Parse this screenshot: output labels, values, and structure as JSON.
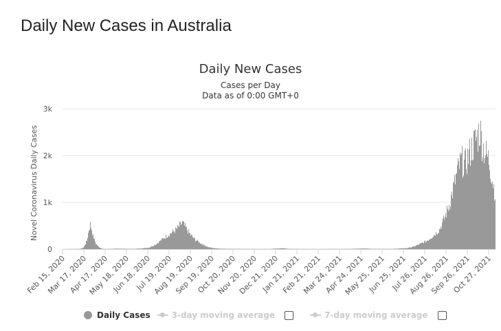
{
  "page": {
    "title": "Daily New Cases in Australia"
  },
  "legend": {
    "daily": "Daily Cases",
    "ma3": "3-day moving average",
    "ma7": "7-day moving average"
  },
  "colors": {
    "bars": "#999999",
    "grid": "#e6e6e6",
    "inactive": "#cccccc"
  },
  "chart_data": {
    "type": "bar",
    "title": "Daily New Cases",
    "subtitle": "Cases per Day",
    "subtitle2": "Data as of 0:00 GMT+0",
    "ylabel": "Novel Coronavirus Daily Cases",
    "xlabel": "",
    "ylim": [
      0,
      3000
    ],
    "yticks": [
      0,
      1000,
      2000,
      3000
    ],
    "ytick_labels": [
      "0",
      "1k",
      "2k",
      "3k"
    ],
    "x_start": "2020-02-15",
    "x_tick_labels": [
      "Feb 15, 2020",
      "Mar 17, 2020",
      "Apr 17, 2020",
      "May 18, 2020",
      "Jun 18, 2020",
      "Jul 19, 2020",
      "Aug 19, 2020",
      "Sep 19, 2020",
      "Oct 20, 2020",
      "Nov 20, 2020",
      "Dec 21, 2020",
      "Jan 21, 2021",
      "Feb 21, 2021",
      "Mar 24, 2021",
      "Apr 24, 2021",
      "May 25, 2021",
      "Jun 25, 2021",
      "Jul 26, 2021",
      "Aug 26, 2021",
      "Sep 26, 2021",
      "Oct 27, 2021"
    ],
    "x_tick_days": [
      0,
      31,
      62,
      93,
      124,
      155,
      186,
      217,
      248,
      279,
      310,
      341,
      372,
      403,
      434,
      465,
      496,
      527,
      558,
      589,
      620
    ],
    "day_count": 630,
    "series": [
      {
        "name": "Daily Cases",
        "anchors_day_value": [
          [
            0,
            0
          ],
          [
            25,
            5
          ],
          [
            30,
            30
          ],
          [
            35,
            180
          ],
          [
            38,
            420
          ],
          [
            40,
            530
          ],
          [
            42,
            420
          ],
          [
            44,
            280
          ],
          [
            48,
            120
          ],
          [
            52,
            50
          ],
          [
            56,
            15
          ],
          [
            60,
            3
          ],
          [
            70,
            5
          ],
          [
            80,
            10
          ],
          [
            90,
            8
          ],
          [
            100,
            5
          ],
          [
            110,
            10
          ],
          [
            125,
            30
          ],
          [
            135,
            100
          ],
          [
            142,
            180
          ],
          [
            150,
            270
          ],
          [
            158,
            350
          ],
          [
            165,
            420
          ],
          [
            170,
            500
          ],
          [
            174,
            560
          ],
          [
            180,
            430
          ],
          [
            186,
            300
          ],
          [
            192,
            210
          ],
          [
            198,
            150
          ],
          [
            205,
            90
          ],
          [
            212,
            40
          ],
          [
            220,
            20
          ],
          [
            230,
            10
          ],
          [
            250,
            5
          ],
          [
            300,
            3
          ],
          [
            320,
            20
          ],
          [
            330,
            5
          ],
          [
            360,
            2
          ],
          [
            420,
            5
          ],
          [
            440,
            15
          ],
          [
            450,
            5
          ],
          [
            480,
            5
          ],
          [
            500,
            20
          ],
          [
            510,
            50
          ],
          [
            520,
            110
          ],
          [
            530,
            180
          ],
          [
            540,
            300
          ],
          [
            548,
            420
          ],
          [
            555,
            650
          ],
          [
            560,
            850
          ],
          [
            565,
            1100
          ],
          [
            570,
            1400
          ],
          [
            575,
            1700
          ],
          [
            580,
            1900
          ],
          [
            585,
            1800
          ],
          [
            592,
            2050
          ],
          [
            598,
            2250
          ],
          [
            603,
            2400
          ],
          [
            607,
            2550
          ],
          [
            611,
            2200
          ],
          [
            615,
            2050
          ],
          [
            620,
            1900
          ],
          [
            625,
            1500
          ],
          [
            630,
            1100
          ]
        ]
      }
    ]
  }
}
